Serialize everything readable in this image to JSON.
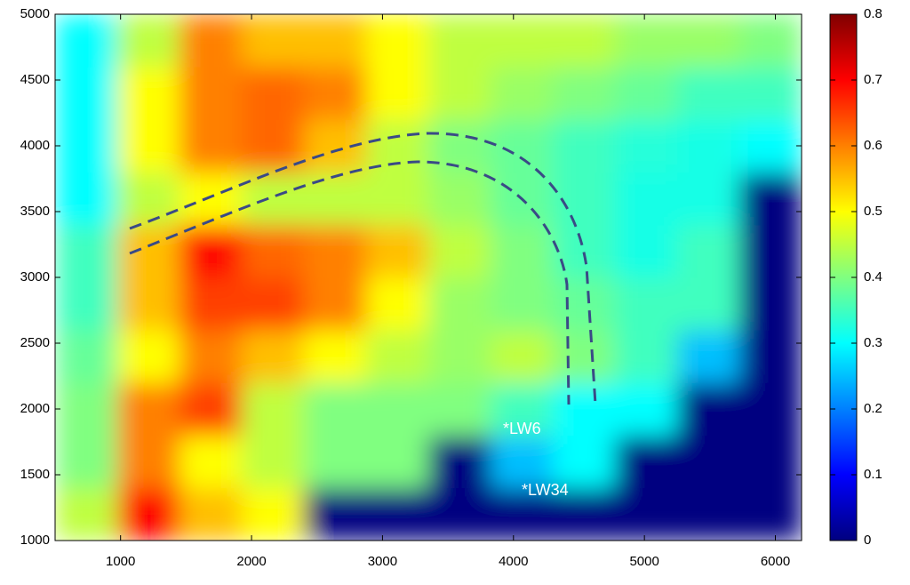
{
  "chart_data": {
    "type": "heatmap",
    "xbins": [
      500,
      975,
      1450,
      1925,
      2400,
      2875,
      3350,
      3825,
      4300,
      4775,
      5250,
      5725,
      6200
    ],
    "ybins": [
      1000,
      1400,
      1800,
      2200,
      2600,
      3000,
      3400,
      3800,
      4200,
      4600,
      5000
    ],
    "values": [
      [
        0.45,
        0.7,
        0.55,
        0.5,
        0,
        0,
        0,
        0,
        0,
        0,
        0,
        0
      ],
      [
        0.4,
        0.6,
        0.5,
        0.45,
        0.4,
        0.4,
        0,
        0.25,
        0.3,
        0,
        0,
        0
      ],
      [
        0.4,
        0.6,
        0.65,
        0.45,
        0.4,
        0.4,
        0.4,
        0.35,
        0.3,
        0.3,
        0,
        0
      ],
      [
        0.38,
        0.5,
        0.6,
        0.55,
        0.5,
        0.45,
        0.42,
        0.45,
        0.4,
        0.35,
        0.25,
        0
      ],
      [
        0.35,
        0.55,
        0.65,
        0.65,
        0.6,
        0.5,
        0.42,
        0.4,
        0.38,
        0.35,
        0.35,
        0
      ],
      [
        0.35,
        0.55,
        0.7,
        0.62,
        0.6,
        0.55,
        0.45,
        0.4,
        0.35,
        0.32,
        0.35,
        0
      ],
      [
        0.3,
        0.45,
        0.5,
        0.45,
        0.45,
        0.45,
        0.42,
        0.38,
        0.35,
        0.32,
        0.32,
        0
      ],
      [
        0.3,
        0.5,
        0.6,
        0.62,
        0.55,
        0.45,
        0.4,
        0.38,
        0.35,
        0.33,
        0.32,
        0.3
      ],
      [
        0.3,
        0.5,
        0.6,
        0.62,
        0.6,
        0.5,
        0.45,
        0.42,
        0.4,
        0.38,
        0.35,
        0.35
      ],
      [
        0.3,
        0.45,
        0.6,
        0.55,
        0.55,
        0.5,
        0.45,
        0.45,
        0.45,
        0.42,
        0.42,
        0.4
      ]
    ],
    "xlim": [
      500,
      6200
    ],
    "ylim": [
      1000,
      5000
    ],
    "xticks": [
      1000,
      2000,
      3000,
      4000,
      5000,
      6000
    ],
    "yticks": [
      1000,
      1500,
      2000,
      2500,
      3000,
      3500,
      4000,
      4500,
      5000
    ],
    "clim": [
      0,
      0.8
    ],
    "cticks": [
      0,
      0.1,
      0.2,
      0.3,
      0.4,
      0.5,
      0.6,
      0.7,
      0.8
    ],
    "colormap": "jet",
    "annotations": [
      "*LW6",
      "*LW34"
    ]
  }
}
